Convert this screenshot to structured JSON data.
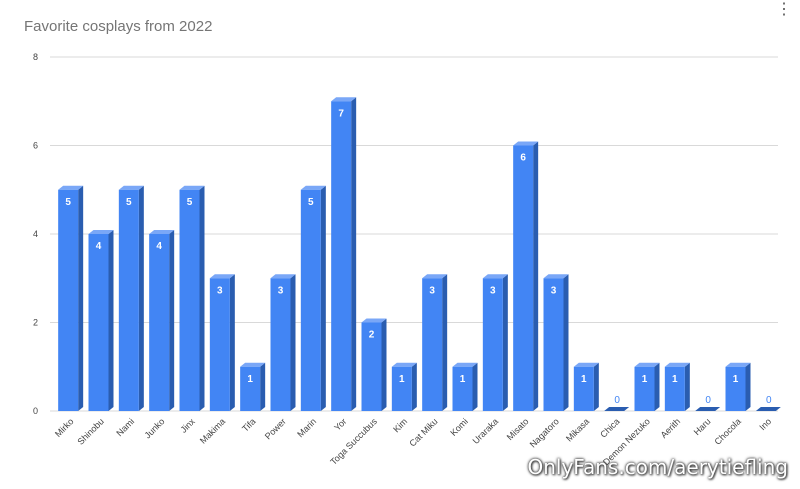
{
  "chart_data": {
    "type": "bar",
    "title": "Favorite cosplays from 2022",
    "xlabel": "",
    "ylabel": "",
    "ylim": [
      0,
      8
    ],
    "yticks": [
      0,
      2,
      4,
      6,
      8
    ],
    "grid": true,
    "legend": "none",
    "categories": [
      "Mirko",
      "Shinobu",
      "Nami",
      "Junko",
      "Jinx",
      "Makima",
      "Tifa",
      "Power",
      "Marin",
      "Yor",
      "Toga Succubus",
      "Kim",
      "Cat Miku",
      "Komi",
      "Uraraka",
      "Misato",
      "Nagatoro",
      "Mikasa",
      "Chica",
      "Demon Nezuko",
      "Aerith",
      "Haru",
      "Chocola",
      "Ino"
    ],
    "values": [
      5,
      4,
      5,
      4,
      5,
      3,
      1,
      3,
      5,
      7,
      2,
      1,
      3,
      1,
      3,
      6,
      3,
      1,
      0,
      1,
      1,
      0,
      1,
      0
    ],
    "colors": {
      "front": "#4285f4",
      "side": "#2a5db0",
      "top": "#7aa7f7",
      "label_inside": "#ffffff",
      "label_zero": "#4285f4",
      "grid": "#d9d9d9",
      "tick_text": "#444444"
    }
  },
  "ui": {
    "menu_icon": "⋮",
    "watermark": "OnlyFans.com/aerytiefling"
  }
}
